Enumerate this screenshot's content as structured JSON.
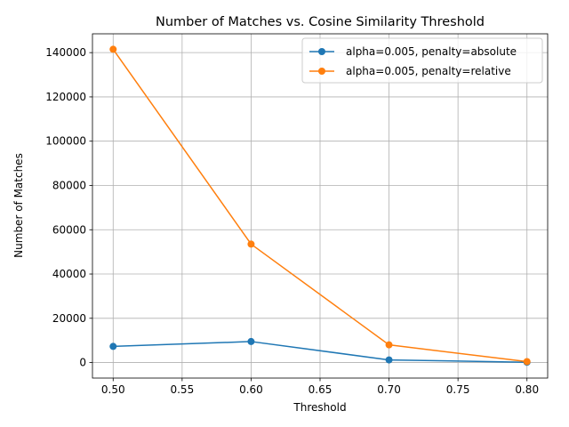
{
  "chart_data": {
    "type": "line",
    "title": "Number of Matches vs. Cosine Similarity Threshold",
    "xlabel": "Threshold",
    "ylabel": "Number of Matches",
    "x": [
      0.5,
      0.6,
      0.7,
      0.8
    ],
    "xticks": [
      "0.50",
      "0.55",
      "0.60",
      "0.65",
      "0.70",
      "0.75",
      "0.80"
    ],
    "yticks": [
      "0",
      "20000",
      "40000",
      "60000",
      "80000",
      "100000",
      "120000",
      "140000"
    ],
    "xlim": [
      0.485,
      0.815
    ],
    "ylim": [
      -7000,
      148500
    ],
    "grid": true,
    "legend_position": "top-right",
    "series": [
      {
        "name": "alpha=0.005, penalty=absolute",
        "color": "#1f77b4",
        "values": [
          7300,
          9500,
          1200,
          150
        ]
      },
      {
        "name": "alpha=0.005, penalty=relative",
        "color": "#ff7f0e",
        "values": [
          141500,
          53500,
          8000,
          450
        ]
      }
    ]
  }
}
